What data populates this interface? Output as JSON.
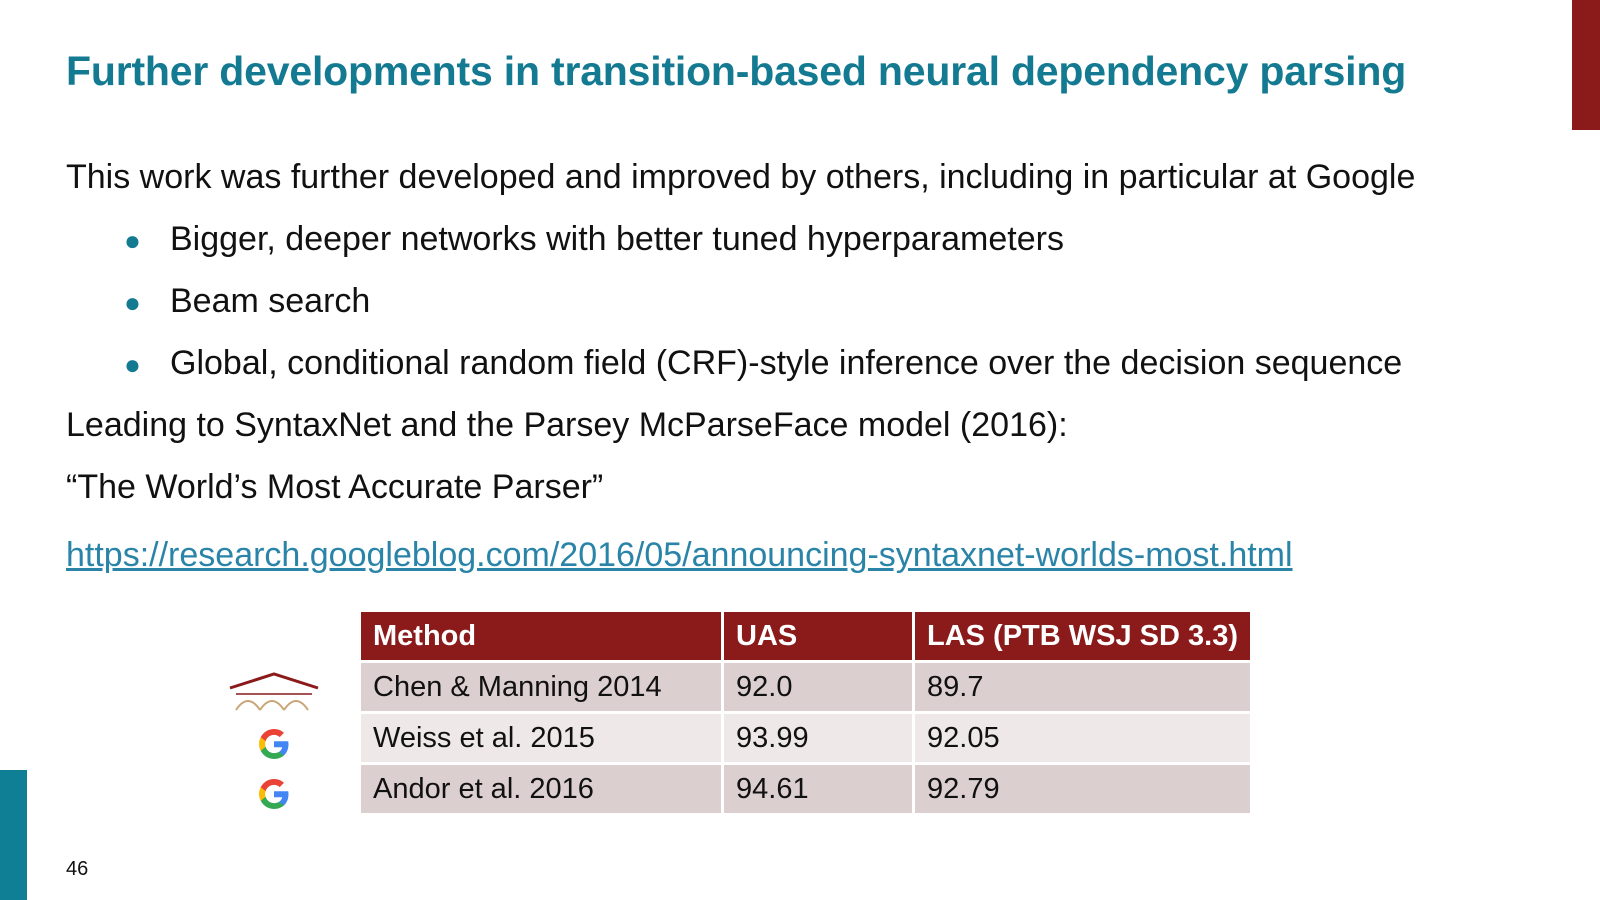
{
  "slide": {
    "title": "Further developments in transition-based neural dependency parsing",
    "intro": "This work was further developed and improved by others, including in particular at Google",
    "bullets": [
      "Bigger, deeper networks with better tuned hyperparameters",
      "Beam search",
      "Global, conditional random field (CRF)-style inference over the decision sequence"
    ],
    "leading": "Leading to SyntaxNet and the Parsey McParseFace model (2016):",
    "quote": "“The World’s Most Accurate Parser”",
    "link": "https://research.googleblog.com/2016/05/announcing-syntaxnet-worlds-most.html",
    "page_number": "46"
  },
  "table": {
    "headers": [
      "Method",
      "UAS",
      "LAS (PTB WSJ SD 3.3)"
    ],
    "rows": [
      [
        "Chen & Manning 2014",
        "92.0",
        "89.7"
      ],
      [
        "Weiss et al. 2015",
        "93.99",
        "92.05"
      ],
      [
        "Andor et al. 2016",
        "94.61",
        "92.79"
      ]
    ],
    "row_icons": [
      "stanford-logo-icon",
      "google-logo-icon",
      "google-logo-icon"
    ]
  },
  "colors": {
    "title": "#137a92",
    "accent_red": "#8b1a1a",
    "accent_teal": "#0f7f96",
    "link": "#2a84a8"
  }
}
